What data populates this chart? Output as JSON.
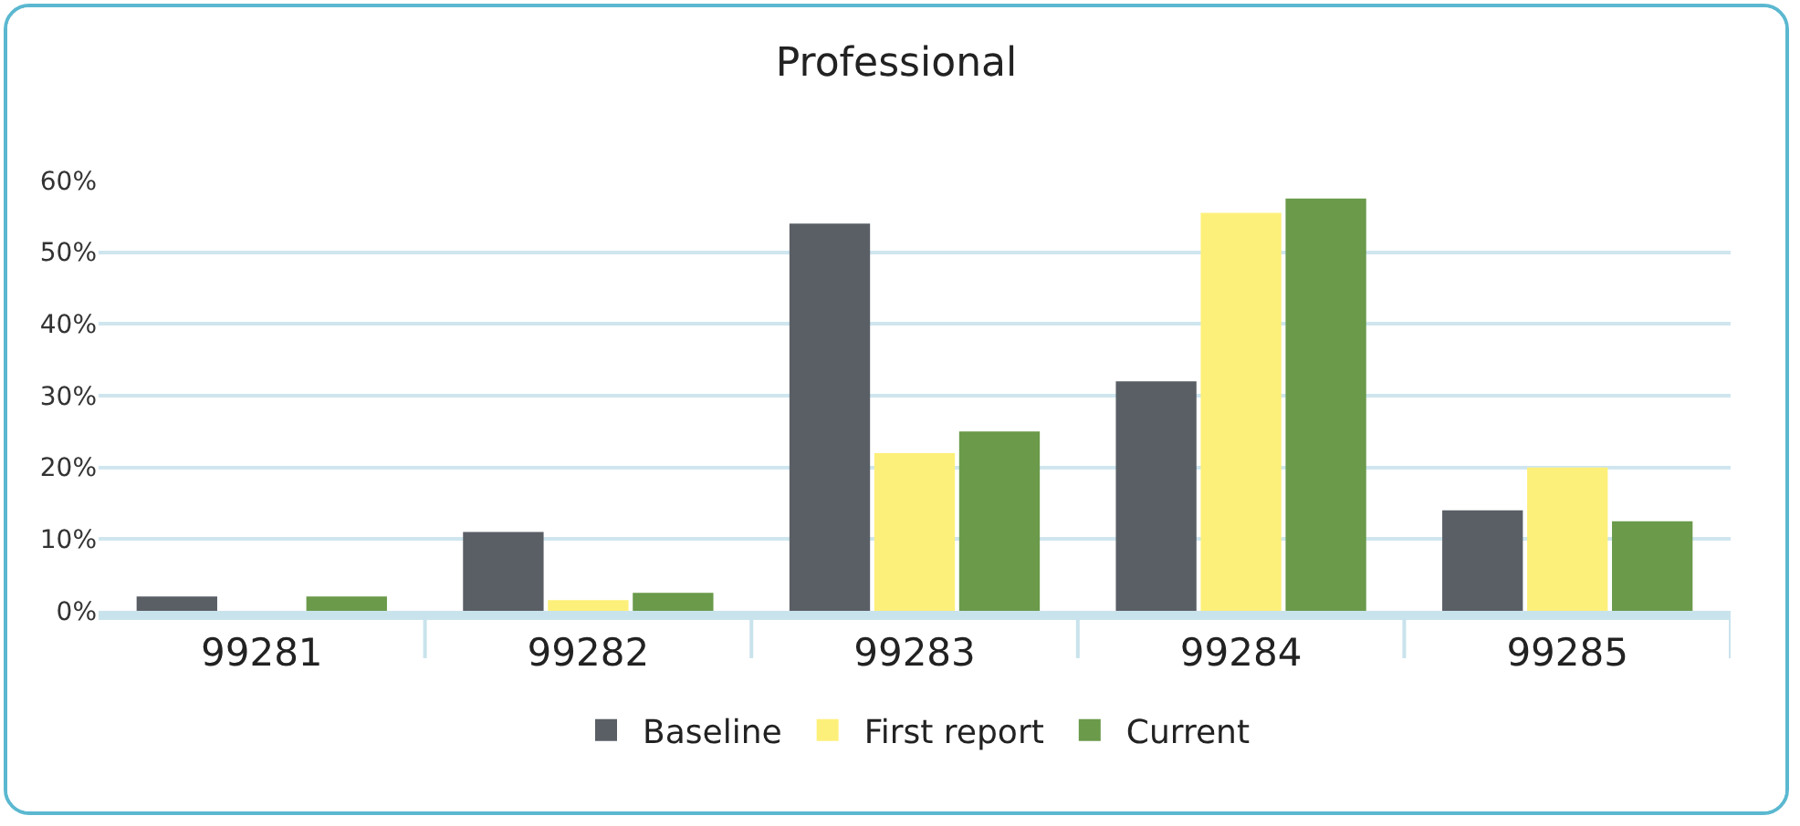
{
  "chart_data": {
    "type": "bar",
    "title": "Professional",
    "categories": [
      "99281",
      "99282",
      "99283",
      "99284",
      "99285"
    ],
    "series": [
      {
        "name": "Baseline",
        "color": "#5a5f66",
        "values": [
          2,
          11,
          54,
          32,
          14
        ]
      },
      {
        "name": "First report",
        "color": "#fdf07a",
        "values": [
          0,
          1.5,
          22,
          55.5,
          20
        ]
      },
      {
        "name": "Current",
        "color": "#6a9a4a",
        "values": [
          2,
          2.5,
          25,
          57.5,
          12.5
        ]
      }
    ],
    "ylim": [
      0,
      60
    ],
    "yticks": [
      {
        "value": 0,
        "label": "0%"
      },
      {
        "value": 10,
        "label": "10%"
      },
      {
        "value": 20,
        "label": "20%"
      },
      {
        "value": 30,
        "label": "30%"
      },
      {
        "value": 40,
        "label": "40%"
      },
      {
        "value": 50,
        "label": "50%"
      },
      {
        "value": 60,
        "label": "60%"
      }
    ],
    "grid": "y",
    "legend": "bottom"
  }
}
